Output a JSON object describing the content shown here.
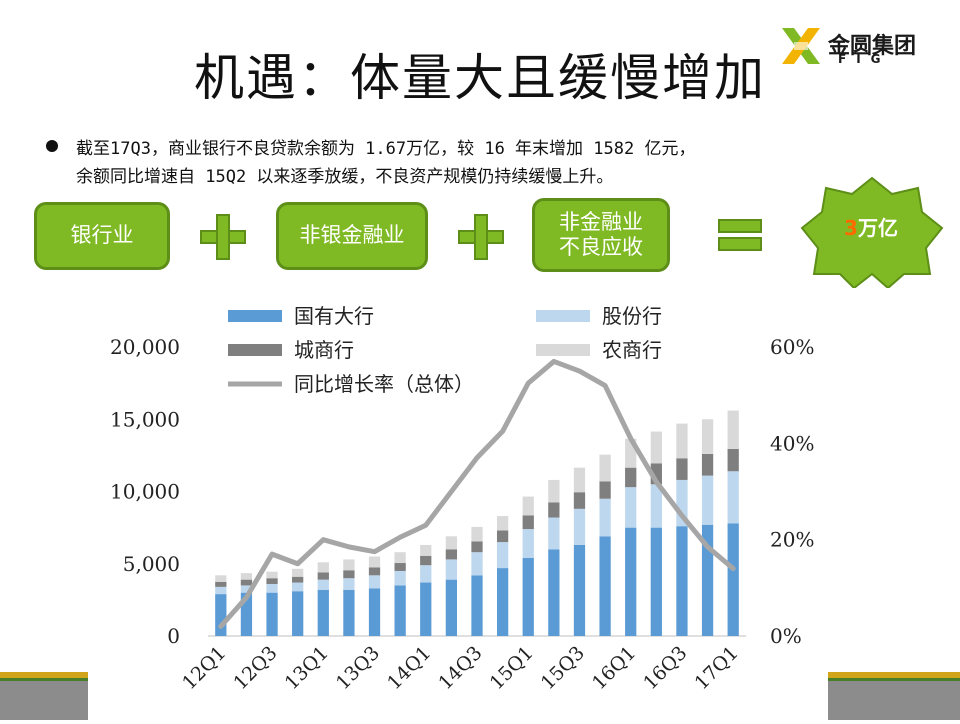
{
  "title": "机遇：体量大且缓慢增加",
  "logo": {
    "name": "金圆集团",
    "sub": "FIG"
  },
  "bullet": {
    "line1": "截至17Q3，商业银行不良贷款余额为 1.67万亿，较 16 年末增加 1582 亿元，",
    "line2": "余额同比增速自 15Q2 以来逐季放缓，不良资产规模仍持续缓慢上升。"
  },
  "equation": {
    "box1": "银行业",
    "box2": "非银金融业",
    "box3_line1": "非金融业",
    "box3_line2": "不良应收",
    "result_num": "3",
    "result_unit": "万亿"
  },
  "colors": {
    "green": "#7fba24",
    "green_dark": "#5d8e18",
    "state": "#5b9bd5",
    "joint": "#bdd7ee",
    "city": "#7f7f7f",
    "rural": "#d9d9d9",
    "growth": "#a6a6a6",
    "orange": "#ff6a00"
  },
  "chart_data": {
    "type": "bar",
    "stacked": true,
    "categories": [
      "12Q1",
      "12Q2",
      "12Q3",
      "12Q4",
      "13Q1",
      "13Q2",
      "13Q3",
      "13Q4",
      "14Q1",
      "14Q2",
      "14Q3",
      "14Q4",
      "15Q1",
      "15Q2",
      "15Q3",
      "15Q4",
      "16Q1",
      "16Q2",
      "16Q3",
      "16Q4",
      "17Q1"
    ],
    "xtick_labels": [
      "12Q1",
      "12Q3",
      "13Q1",
      "13Q3",
      "14Q1",
      "14Q3",
      "15Q1",
      "15Q3",
      "16Q1",
      "16Q3",
      "17Q1"
    ],
    "series": [
      {
        "name": "国有大行",
        "values": [
          2900,
          3000,
          3000,
          3100,
          3200,
          3200,
          3300,
          3500,
          3700,
          3900,
          4200,
          4700,
          5400,
          6000,
          6300,
          6900,
          7500,
          7500,
          7600,
          7700,
          7800
        ]
      },
      {
        "name": "股份行",
        "values": [
          500,
          500,
          600,
          600,
          700,
          800,
          900,
          1000,
          1200,
          1400,
          1600,
          1800,
          2000,
          2200,
          2500,
          2600,
          2800,
          3000,
          3200,
          3400,
          3600
        ]
      },
      {
        "name": "城商行",
        "values": [
          350,
          400,
          400,
          400,
          500,
          550,
          550,
          550,
          650,
          700,
          750,
          800,
          950,
          1050,
          1150,
          1200,
          1350,
          1450,
          1500,
          1500,
          1550
        ]
      },
      {
        "name": "农商行",
        "values": [
          450,
          450,
          450,
          550,
          700,
          750,
          750,
          750,
          750,
          900,
          1000,
          1000,
          1300,
          1550,
          1700,
          1850,
          2000,
          2200,
          2400,
          2400,
          2650
        ]
      }
    ],
    "line": {
      "name": "同比增长率（总体）",
      "values": [
        2,
        8,
        17,
        15,
        20,
        18.5,
        17.5,
        20.5,
        23,
        30,
        37,
        42.5,
        52.5,
        57,
        55,
        52,
        41,
        32,
        25,
        18.5,
        14
      ]
    },
    "y_left": {
      "min": 0,
      "max": 20000,
      "ticks": [
        "0",
        "5,000",
        "10,000",
        "15,000",
        "20,000"
      ]
    },
    "y_right": {
      "min": 0,
      "max": 60,
      "ticks": [
        "0%",
        "20%",
        "40%",
        "60%"
      ]
    },
    "legend": {
      "position": "top"
    }
  }
}
